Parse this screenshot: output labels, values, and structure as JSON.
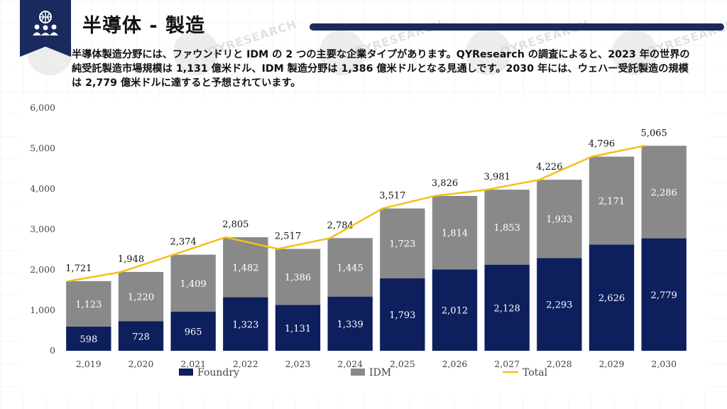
{
  "header": {
    "title": "半導体 - 製造",
    "description": "半導体製造分野には、ファウンドリと IDM の 2 つの主要な企業タイプがあります。QYResearch の調査によると、2023 年の世界の純受託製造市場規模は 1,131 億米ドル、IDM 製造分野は 1,386 億米ドルとなる見通しです。2030 年には、ウェハー受託製造の規模は 2,779 億米ドルに達すると予想されています。",
    "logo_icon": "people-network-icon"
  },
  "watermark_text": "QYRESEARCH",
  "colors": {
    "foundry": "#0d1f5c",
    "idm": "#898989",
    "total": "#f2c018",
    "navy": "#1a2a5e"
  },
  "chart_data": {
    "type": "bar",
    "stacked": true,
    "categories": [
      "2,019",
      "2,020",
      "2,021",
      "2,022",
      "2,023",
      "2,024",
      "2,025",
      "2,026",
      "2,027",
      "2,028",
      "2,029",
      "2,030"
    ],
    "series": [
      {
        "name": "Foundry",
        "type": "bar",
        "values": [
          598,
          728,
          965,
          1323,
          1131,
          1339,
          1793,
          2012,
          2128,
          2293,
          2626,
          2779
        ]
      },
      {
        "name": "IDM",
        "type": "bar",
        "values": [
          1123,
          1220,
          1409,
          1482,
          1386,
          1445,
          1723,
          1814,
          1853,
          1933,
          2171,
          2286
        ]
      },
      {
        "name": "Total",
        "type": "line",
        "values": [
          1721,
          1948,
          2374,
          2805,
          2517,
          2784,
          3517,
          3826,
          3981,
          4226,
          4796,
          5065
        ]
      }
    ],
    "y_ticks": [
      "0",
      "1,000",
      "2,000",
      "3,000",
      "4,000",
      "5,000",
      "6,000"
    ],
    "ylim": [
      0,
      6000
    ],
    "legend_position": "bottom",
    "grid": false,
    "data_labels": true
  }
}
